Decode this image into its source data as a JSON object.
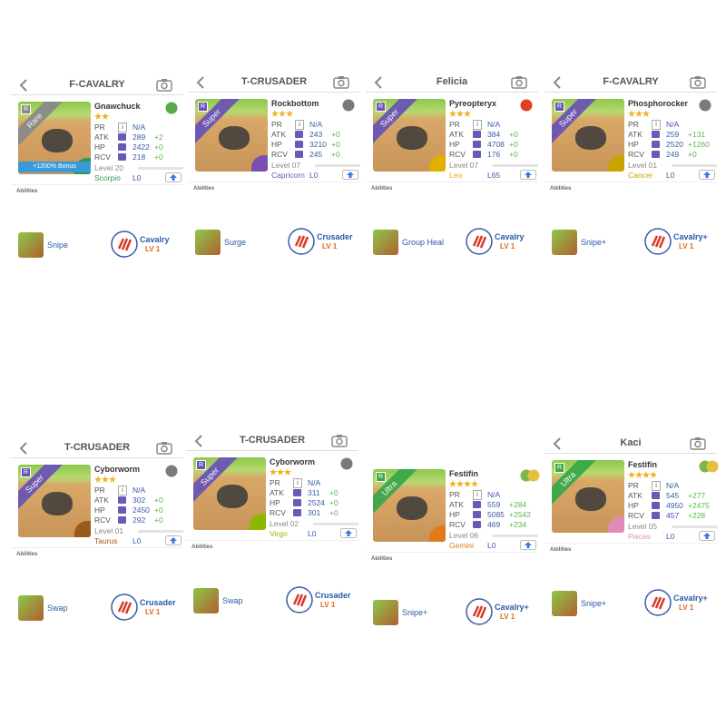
{
  "labels": {
    "pr": "PR",
    "atk": "ATK",
    "hp": "HP",
    "rcv": "RCV",
    "info": "i",
    "badge": "R",
    "abilities": "Abilities",
    "lv": "LV 1"
  },
  "cards": [
    {
      "title": "F-CAVALRY",
      "name": "Gnawchuck",
      "rarity": "Rare",
      "rarity_color": "#8a8a8a",
      "stars": 2,
      "element_colors": [
        "#5aa84a"
      ],
      "pr": "N/A",
      "atk": 289,
      "atk_bonus": "+2",
      "hp": 2422,
      "hp_bonus": "+0",
      "rcv": 218,
      "rcv_bonus": "+0",
      "level": "Level 20",
      "zodiac": "Scorpio",
      "zodiac_color": "#2a9a5a",
      "leader": "L0",
      "bonus_banner": "+1200% Bonus",
      "ability": "Snipe",
      "class": "Cavalry"
    },
    {
      "title": "T-CRUSADER",
      "name": "Rockbottom",
      "rarity": "Super",
      "rarity_color": "#6a55b5",
      "stars": 3,
      "element_colors": [
        "#7a7a7a"
      ],
      "pr": "N/A",
      "atk": 243,
      "atk_bonus": "+0",
      "hp": 3210,
      "hp_bonus": "+0",
      "rcv": 245,
      "rcv_bonus": "+0",
      "level": "Level 07",
      "zodiac": "Capricorn",
      "zodiac_color": "#7a4fb0",
      "leader": "L0",
      "ability": "Surge",
      "class": "Crusader"
    },
    {
      "title": "Felicia",
      "name": "Pyreopteryx",
      "rarity": "Super",
      "rarity_color": "#6a55b5",
      "stars": 3,
      "element_colors": [
        "#e0401e"
      ],
      "pr": "N/A",
      "atk": 384,
      "atk_bonus": "+0",
      "hp": 4708,
      "hp_bonus": "+0",
      "rcv": 176,
      "rcv_bonus": "+0",
      "level": "Level 07",
      "zodiac": "Leo",
      "zodiac_color": "#e0b000",
      "leader": "L65",
      "ability": "Group Heal",
      "class": "Cavalry"
    },
    {
      "title": "F-CAVALRY",
      "name": "Phosphorocker",
      "rarity": "Super",
      "rarity_color": "#6a55b5",
      "stars": 3,
      "element_colors": [
        "#7a7a7a"
      ],
      "pr": "N/A",
      "atk": 259,
      "atk_bonus": "+131",
      "hp": 2520,
      "hp_bonus": "+1260",
      "rcv": 249,
      "rcv_bonus": "+0",
      "level": "Level 01",
      "zodiac": "Cancer",
      "zodiac_color": "#c9a400",
      "leader": "L0",
      "ability": "Snipe+",
      "class": "Cavalry+"
    },
    {
      "title": "T-CRUSADER",
      "name": "Cyborworm",
      "rarity": "Super",
      "rarity_color": "#6a55b5",
      "stars": 3,
      "element_colors": [
        "#7a7a7a"
      ],
      "pr": "N/A",
      "atk": 302,
      "atk_bonus": "+0",
      "hp": 2450,
      "hp_bonus": "+0",
      "rcv": 292,
      "rcv_bonus": "+0",
      "level": "Level 01",
      "zodiac": "Taurus",
      "zodiac_color": "#9a5a1a",
      "leader": "L0",
      "ability": "Swap",
      "class": "Crusader"
    },
    {
      "title": "T-CRUSADER",
      "name": "Cyborworm",
      "rarity": "Super",
      "rarity_color": "#6a55b5",
      "stars": 3,
      "element_colors": [
        "#7a7a7a"
      ],
      "pr": "N/A",
      "atk": 311,
      "atk_bonus": "+0",
      "hp": 2524,
      "hp_bonus": "+0",
      "rcv": 301,
      "rcv_bonus": "+0",
      "level": "Level 02",
      "zodiac": "Virgo",
      "zodiac_color": "#8ab800",
      "leader": "L0",
      "ability": "Swap",
      "class": "Crusader"
    },
    {
      "name": "Festifin",
      "rarity": "Ultra",
      "rarity_color": "#3aa84a",
      "stars": 4,
      "element_colors": [
        "#7ab84a",
        "#e8c040"
      ],
      "pr": "N/A",
      "atk": 559,
      "atk_bonus": "+284",
      "hp": 5085,
      "hp_bonus": "+2542",
      "rcv": 469,
      "rcv_bonus": "+234",
      "level": "Level 06",
      "zodiac": "Gemini",
      "zodiac_color": "#e07a1a",
      "leader": "L0",
      "ability": "Snipe+",
      "class": "Cavalry+"
    },
    {
      "title": "Kaci",
      "name": "Festifin",
      "rarity": "Ultra",
      "rarity_color": "#3aa84a",
      "stars": 4,
      "element_colors": [
        "#7ab84a",
        "#e8c040"
      ],
      "pr": "N/A",
      "atk": 545,
      "atk_bonus": "+277",
      "hp": 4950,
      "hp_bonus": "+2475",
      "rcv": 457,
      "rcv_bonus": "+228",
      "level": "Level 05",
      "zodiac": "Pisces",
      "zodiac_color": "#e08ab8",
      "leader": "L0",
      "ability": "Snipe+",
      "class": "Cavalry+"
    }
  ]
}
